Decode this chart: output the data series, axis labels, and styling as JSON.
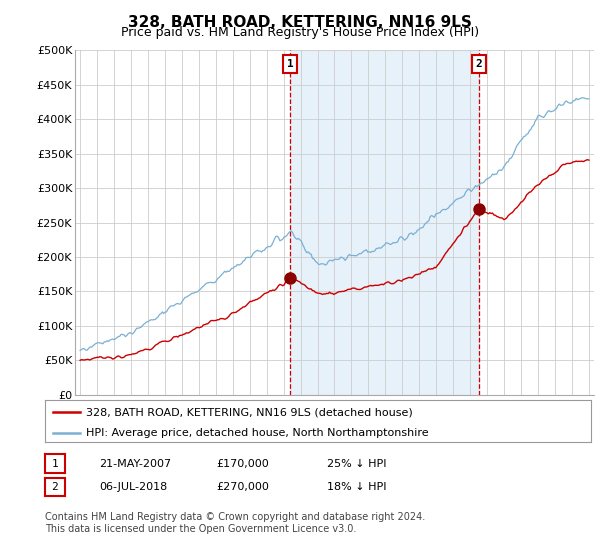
{
  "title": "328, BATH ROAD, KETTERING, NN16 9LS",
  "subtitle": "Price paid vs. HM Land Registry's House Price Index (HPI)",
  "ylabel_ticks": [
    "£0",
    "£50K",
    "£100K",
    "£150K",
    "£200K",
    "£250K",
    "£300K",
    "£350K",
    "£400K",
    "£450K",
    "£500K"
  ],
  "ytick_values": [
    0,
    50000,
    100000,
    150000,
    200000,
    250000,
    300000,
    350000,
    400000,
    450000,
    500000
  ],
  "ylim": [
    0,
    500000
  ],
  "xlim_start": 1994.7,
  "xlim_end": 2025.3,
  "sale1_x": 2007.38,
  "sale1_y": 170000,
  "sale1_label": "1",
  "sale2_x": 2018.51,
  "sale2_y": 270000,
  "sale2_label": "2",
  "hpi_color": "#7ab0d4",
  "hpi_fill_color": "#d6e8f5",
  "sale_color": "#cc0000",
  "marker_color": "#8b0000",
  "grid_color": "#cccccc",
  "background_color": "#ffffff",
  "legend_label_red": "328, BATH ROAD, KETTERING, NN16 9LS (detached house)",
  "legend_label_blue": "HPI: Average price, detached house, North Northamptonshire",
  "table_row1": [
    "1",
    "21-MAY-2007",
    "£170,000",
    "25% ↓ HPI"
  ],
  "table_row2": [
    "2",
    "06-JUL-2018",
    "£270,000",
    "18% ↓ HPI"
  ],
  "footnote": "Contains HM Land Registry data © Crown copyright and database right 2024.\nThis data is licensed under the Open Government Licence v3.0.",
  "title_fontsize": 11,
  "subtitle_fontsize": 9,
  "tick_fontsize": 8,
  "legend_fontsize": 8,
  "table_fontsize": 8,
  "footnote_fontsize": 7
}
